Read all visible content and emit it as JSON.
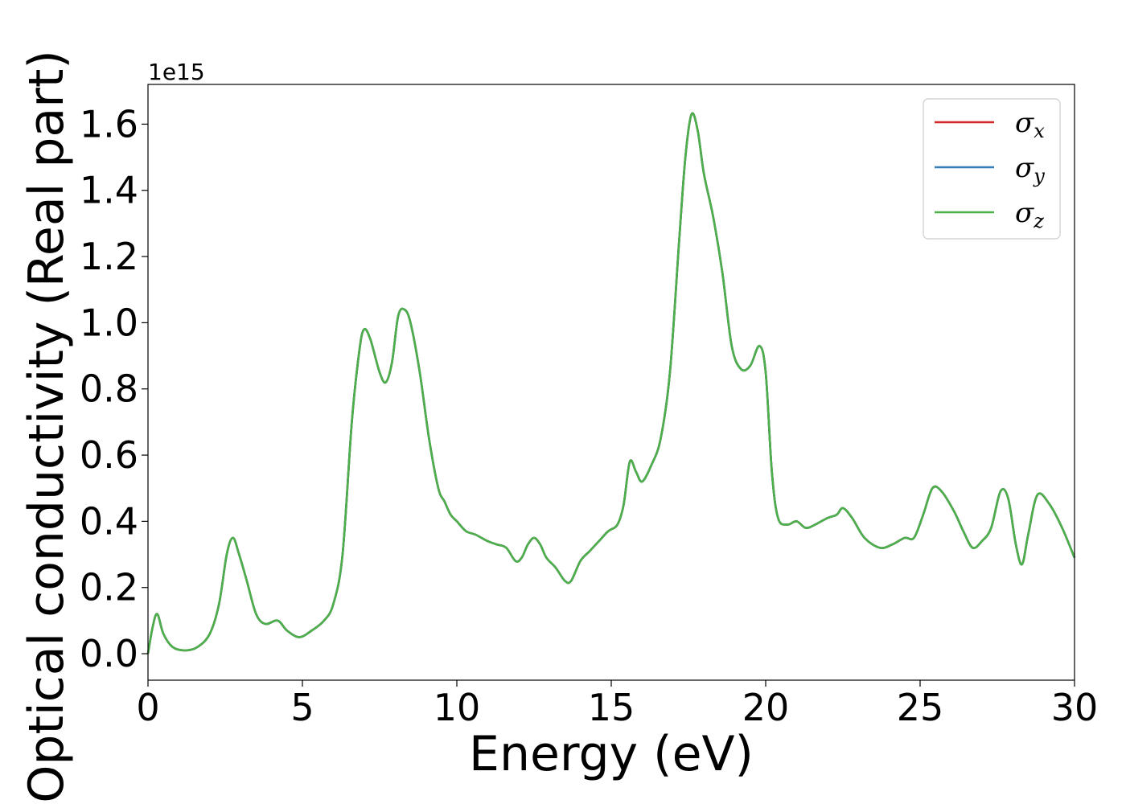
{
  "chart_data": {
    "type": "line",
    "xlabel": "Energy (eV)",
    "ylabel": "Optical conductivity (Real part)",
    "y_offset_label": "1e15",
    "xlim": [
      0,
      30
    ],
    "ylim": [
      -0.08,
      1.72
    ],
    "xticks": [
      0,
      5,
      10,
      15,
      20,
      25,
      30
    ],
    "xtick_labels": [
      "0",
      "5",
      "10",
      "15",
      "20",
      "25",
      "30"
    ],
    "yticks": [
      0.0,
      0.2,
      0.4,
      0.6,
      0.8,
      1.0,
      1.2,
      1.4,
      1.6
    ],
    "ytick_labels": [
      "0.0",
      "0.2",
      "0.4",
      "0.6",
      "0.8",
      "1.0",
      "1.2",
      "1.4",
      "1.6"
    ],
    "grid": false,
    "legend_position": "top-right",
    "series": [
      {
        "name": "σx",
        "symbol": "σ",
        "subscript": "x",
        "color": "#d62728",
        "x": [
          0,
          0.15,
          0.3,
          0.5,
          0.8,
          1.2,
          1.6,
          2.0,
          2.3,
          2.55,
          2.75,
          2.95,
          3.2,
          3.5,
          3.8,
          4.2,
          4.5,
          4.9,
          5.3,
          5.7,
          6.0,
          6.3,
          6.6,
          6.85,
          7.0,
          7.2,
          7.5,
          7.7,
          7.9,
          8.1,
          8.3,
          8.5,
          8.8,
          9.1,
          9.4,
          9.6,
          9.8,
          10.0,
          10.3,
          10.6,
          11.0,
          11.3,
          11.6,
          11.9,
          12.1,
          12.3,
          12.5,
          12.7,
          12.9,
          13.2,
          13.5,
          13.7,
          14.0,
          14.3,
          14.6,
          14.9,
          15.2,
          15.4,
          15.6,
          15.8,
          16.0,
          16.3,
          16.6,
          16.9,
          17.2,
          17.4,
          17.6,
          17.8,
          18.0,
          18.3,
          18.6,
          18.9,
          19.2,
          19.5,
          19.8,
          20.0,
          20.2,
          20.4,
          20.7,
          21.0,
          21.3,
          21.6,
          22.0,
          22.3,
          22.5,
          22.8,
          23.2,
          23.7,
          24.1,
          24.5,
          24.8,
          25.1,
          25.4,
          25.7,
          26.1,
          26.4,
          26.7,
          27.0,
          27.3,
          27.6,
          27.85,
          28.1,
          28.3,
          28.5,
          28.8,
          29.2,
          29.6,
          30.0
        ],
        "y": [
          0.0,
          0.08,
          0.12,
          0.06,
          0.02,
          0.01,
          0.02,
          0.06,
          0.15,
          0.3,
          0.35,
          0.3,
          0.22,
          0.12,
          0.09,
          0.1,
          0.07,
          0.05,
          0.07,
          0.1,
          0.15,
          0.3,
          0.7,
          0.92,
          0.98,
          0.95,
          0.85,
          0.82,
          0.88,
          1.02,
          1.04,
          1.0,
          0.85,
          0.65,
          0.5,
          0.46,
          0.42,
          0.4,
          0.37,
          0.36,
          0.34,
          0.33,
          0.32,
          0.28,
          0.29,
          0.33,
          0.35,
          0.33,
          0.29,
          0.26,
          0.22,
          0.22,
          0.28,
          0.31,
          0.34,
          0.37,
          0.39,
          0.45,
          0.58,
          0.55,
          0.52,
          0.57,
          0.65,
          0.85,
          1.25,
          1.5,
          1.63,
          1.58,
          1.45,
          1.32,
          1.15,
          0.93,
          0.86,
          0.87,
          0.93,
          0.85,
          0.55,
          0.41,
          0.39,
          0.4,
          0.38,
          0.39,
          0.41,
          0.42,
          0.44,
          0.41,
          0.35,
          0.32,
          0.33,
          0.35,
          0.35,
          0.42,
          0.5,
          0.49,
          0.43,
          0.37,
          0.32,
          0.34,
          0.38,
          0.49,
          0.47,
          0.33,
          0.27,
          0.36,
          0.48,
          0.45,
          0.38,
          0.29
        ]
      },
      {
        "name": "σy",
        "symbol": "σ",
        "subscript": "y",
        "color": "#377eb8",
        "x": [
          0,
          0.15,
          0.3,
          0.5,
          0.8,
          1.2,
          1.6,
          2.0,
          2.3,
          2.55,
          2.75,
          2.95,
          3.2,
          3.5,
          3.8,
          4.2,
          4.5,
          4.9,
          5.3,
          5.7,
          6.0,
          6.3,
          6.6,
          6.85,
          7.0,
          7.2,
          7.5,
          7.7,
          7.9,
          8.1,
          8.3,
          8.5,
          8.8,
          9.1,
          9.4,
          9.6,
          9.8,
          10.0,
          10.3,
          10.6,
          11.0,
          11.3,
          11.6,
          11.9,
          12.1,
          12.3,
          12.5,
          12.7,
          12.9,
          13.2,
          13.5,
          13.7,
          14.0,
          14.3,
          14.6,
          14.9,
          15.2,
          15.4,
          15.6,
          15.8,
          16.0,
          16.3,
          16.6,
          16.9,
          17.2,
          17.4,
          17.6,
          17.8,
          18.0,
          18.3,
          18.6,
          18.9,
          19.2,
          19.5,
          19.8,
          20.0,
          20.2,
          20.4,
          20.7,
          21.0,
          21.3,
          21.6,
          22.0,
          22.3,
          22.5,
          22.8,
          23.2,
          23.7,
          24.1,
          24.5,
          24.8,
          25.1,
          25.4,
          25.7,
          26.1,
          26.4,
          26.7,
          27.0,
          27.3,
          27.6,
          27.85,
          28.1,
          28.3,
          28.5,
          28.8,
          29.2,
          29.6,
          30.0
        ],
        "y": [
          0.0,
          0.08,
          0.12,
          0.06,
          0.02,
          0.01,
          0.02,
          0.06,
          0.15,
          0.3,
          0.35,
          0.3,
          0.22,
          0.12,
          0.09,
          0.1,
          0.07,
          0.05,
          0.07,
          0.1,
          0.15,
          0.3,
          0.7,
          0.92,
          0.98,
          0.95,
          0.85,
          0.82,
          0.88,
          1.02,
          1.04,
          1.0,
          0.85,
          0.65,
          0.5,
          0.46,
          0.42,
          0.4,
          0.37,
          0.36,
          0.34,
          0.33,
          0.32,
          0.28,
          0.29,
          0.33,
          0.35,
          0.33,
          0.29,
          0.26,
          0.22,
          0.22,
          0.28,
          0.31,
          0.34,
          0.37,
          0.39,
          0.45,
          0.58,
          0.55,
          0.52,
          0.57,
          0.65,
          0.85,
          1.25,
          1.5,
          1.63,
          1.58,
          1.45,
          1.32,
          1.15,
          0.93,
          0.86,
          0.87,
          0.93,
          0.85,
          0.55,
          0.41,
          0.39,
          0.4,
          0.38,
          0.39,
          0.41,
          0.42,
          0.44,
          0.41,
          0.35,
          0.32,
          0.33,
          0.35,
          0.35,
          0.42,
          0.5,
          0.49,
          0.43,
          0.37,
          0.32,
          0.34,
          0.38,
          0.49,
          0.47,
          0.33,
          0.27,
          0.36,
          0.48,
          0.45,
          0.38,
          0.29
        ]
      },
      {
        "name": "σz",
        "symbol": "σ",
        "subscript": "z",
        "color": "#4daf4a",
        "x": [
          0,
          0.15,
          0.3,
          0.5,
          0.8,
          1.2,
          1.6,
          2.0,
          2.3,
          2.55,
          2.75,
          2.95,
          3.2,
          3.5,
          3.8,
          4.2,
          4.5,
          4.9,
          5.3,
          5.7,
          6.0,
          6.3,
          6.6,
          6.85,
          7.0,
          7.2,
          7.5,
          7.7,
          7.9,
          8.1,
          8.3,
          8.5,
          8.8,
          9.1,
          9.4,
          9.6,
          9.8,
          10.0,
          10.3,
          10.6,
          11.0,
          11.3,
          11.6,
          11.9,
          12.1,
          12.3,
          12.5,
          12.7,
          12.9,
          13.2,
          13.5,
          13.7,
          14.0,
          14.3,
          14.6,
          14.9,
          15.2,
          15.4,
          15.6,
          15.8,
          16.0,
          16.3,
          16.6,
          16.9,
          17.2,
          17.4,
          17.6,
          17.8,
          18.0,
          18.3,
          18.6,
          18.9,
          19.2,
          19.5,
          19.8,
          20.0,
          20.2,
          20.4,
          20.7,
          21.0,
          21.3,
          21.6,
          22.0,
          22.3,
          22.5,
          22.8,
          23.2,
          23.7,
          24.1,
          24.5,
          24.8,
          25.1,
          25.4,
          25.7,
          26.1,
          26.4,
          26.7,
          27.0,
          27.3,
          27.6,
          27.85,
          28.1,
          28.3,
          28.5,
          28.8,
          29.2,
          29.6,
          30.0
        ],
        "y": [
          0.0,
          0.08,
          0.12,
          0.06,
          0.02,
          0.01,
          0.02,
          0.06,
          0.15,
          0.3,
          0.35,
          0.3,
          0.22,
          0.12,
          0.09,
          0.1,
          0.07,
          0.05,
          0.07,
          0.1,
          0.15,
          0.3,
          0.7,
          0.92,
          0.98,
          0.95,
          0.85,
          0.82,
          0.88,
          1.02,
          1.04,
          1.0,
          0.85,
          0.65,
          0.5,
          0.46,
          0.42,
          0.4,
          0.37,
          0.36,
          0.34,
          0.33,
          0.32,
          0.28,
          0.29,
          0.33,
          0.35,
          0.33,
          0.29,
          0.26,
          0.22,
          0.22,
          0.28,
          0.31,
          0.34,
          0.37,
          0.39,
          0.45,
          0.58,
          0.55,
          0.52,
          0.57,
          0.65,
          0.85,
          1.25,
          1.5,
          1.63,
          1.58,
          1.45,
          1.32,
          1.15,
          0.93,
          0.86,
          0.87,
          0.93,
          0.85,
          0.55,
          0.41,
          0.39,
          0.4,
          0.38,
          0.39,
          0.41,
          0.42,
          0.44,
          0.41,
          0.35,
          0.32,
          0.33,
          0.35,
          0.35,
          0.42,
          0.5,
          0.49,
          0.43,
          0.37,
          0.32,
          0.34,
          0.38,
          0.49,
          0.47,
          0.33,
          0.27,
          0.36,
          0.48,
          0.45,
          0.38,
          0.29
        ]
      }
    ]
  }
}
